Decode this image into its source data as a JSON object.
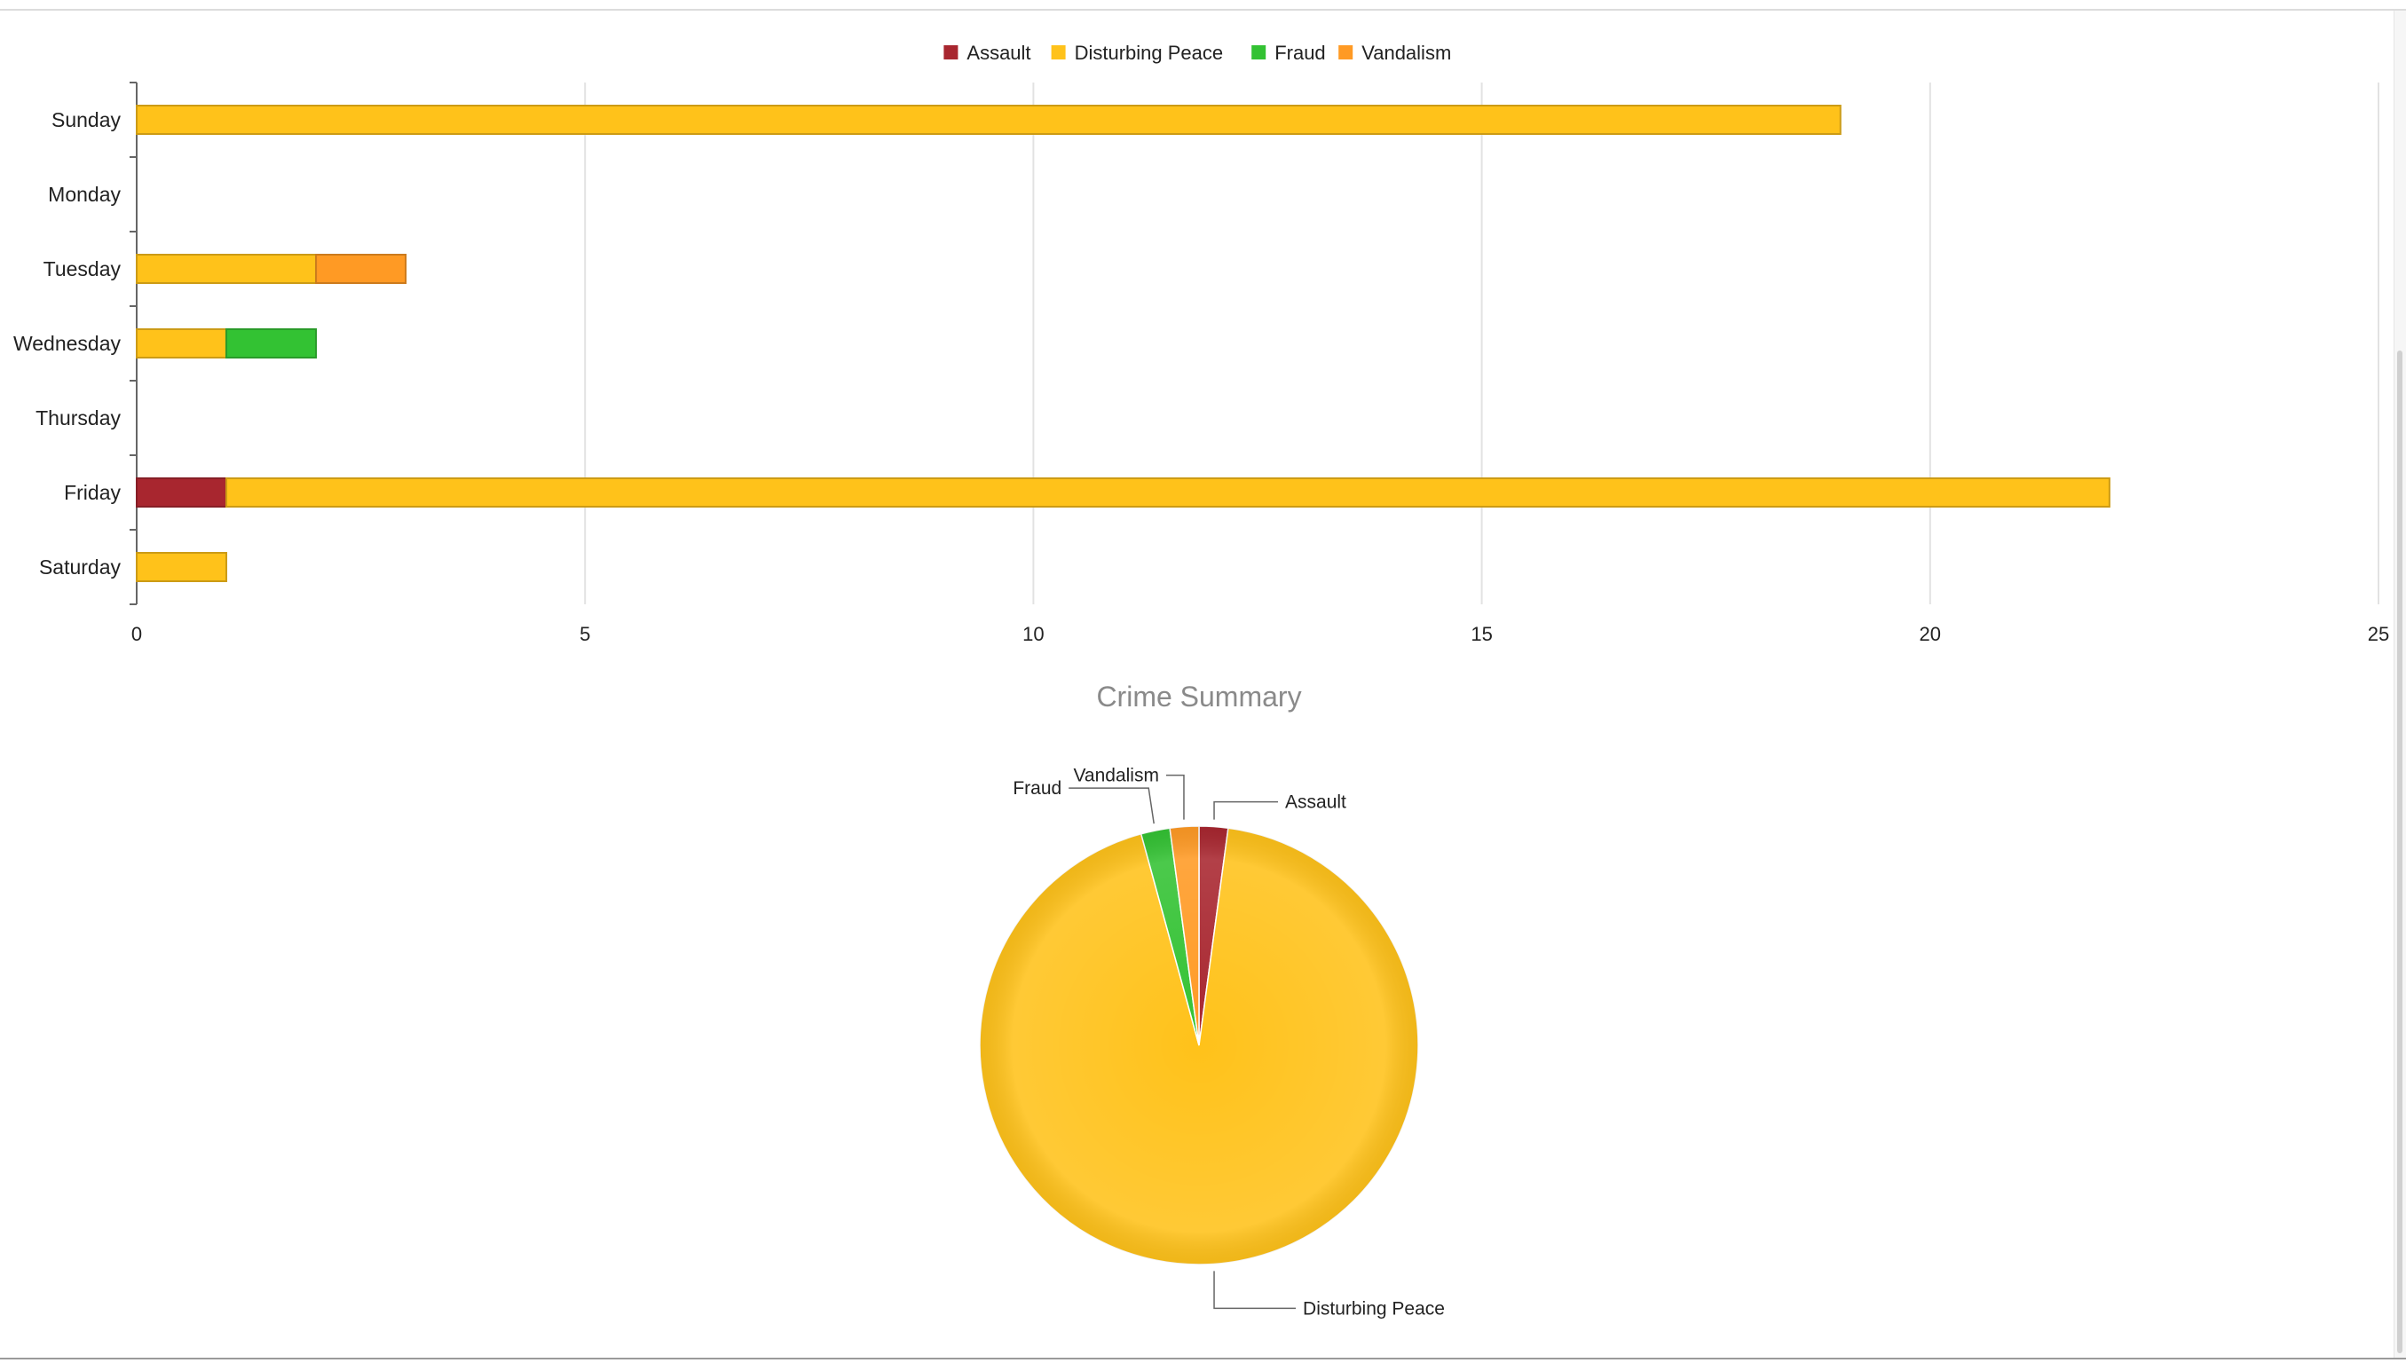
{
  "colors": {
    "Assault": "#a8262f",
    "Disturbing Peace": "#ffc21a",
    "Fraud": "#33c233",
    "Vandalism": "#ff9a24"
  },
  "chart_data": [
    {
      "type": "bar",
      "orientation": "horizontal",
      "stacked": true,
      "legend": [
        "Assault",
        "Disturbing Peace",
        "Fraud",
        "Vandalism"
      ],
      "legend_position": "top-center",
      "categories": [
        "Sunday",
        "Monday",
        "Tuesday",
        "Wednesday",
        "Thursday",
        "Friday",
        "Saturday"
      ],
      "series": [
        {
          "name": "Assault",
          "values": [
            0,
            0,
            0,
            0,
            0,
            1,
            0
          ]
        },
        {
          "name": "Disturbing Peace",
          "values": [
            19,
            0,
            2,
            1,
            0,
            21,
            1
          ]
        },
        {
          "name": "Fraud",
          "values": [
            0,
            0,
            0,
            1,
            0,
            0,
            0
          ]
        },
        {
          "name": "Vandalism",
          "values": [
            0,
            0,
            1,
            0,
            0,
            0,
            0
          ]
        }
      ],
      "xlim": [
        0,
        25
      ],
      "xticks": [
        "0",
        "5",
        "10",
        "15",
        "20",
        "25"
      ],
      "grid": true
    },
    {
      "type": "pie",
      "title": "Crime Summary",
      "slices": [
        {
          "label": "Assault",
          "value": 1
        },
        {
          "label": "Disturbing Peace",
          "value": 44
        },
        {
          "label": "Fraud",
          "value": 1
        },
        {
          "label": "Vandalism",
          "value": 1
        }
      ]
    }
  ]
}
